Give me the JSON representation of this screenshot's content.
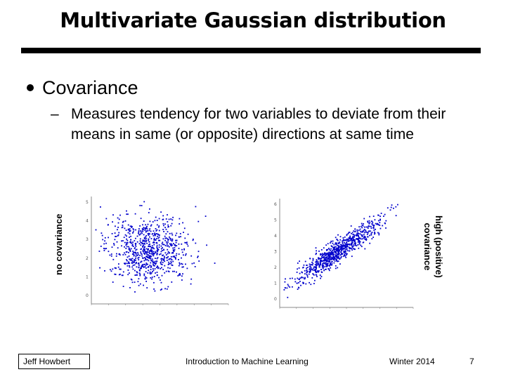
{
  "slide": {
    "title": "Multivariate Gaussian distribution",
    "bullet": "Covariance",
    "sub_dash": "–",
    "sub_text": "Measures tendency for two variables to deviate from their means in same (or opposite) directions at same time"
  },
  "plots": {
    "left_label": "no covariance",
    "right_label_line1": "high (positive)",
    "right_label_line2": "covariance",
    "point_color": "#0000cc",
    "left_y_ticks": [
      "5",
      "4",
      "3",
      "2",
      "1",
      "0"
    ],
    "right_y_ticks": [
      "6",
      "5",
      "4",
      "3",
      "2",
      "1",
      "0"
    ]
  },
  "footer": {
    "author": "Jeff Howbert",
    "course": "Introduction to Machine Learning",
    "term": "Winter 2014",
    "page": "7"
  }
}
